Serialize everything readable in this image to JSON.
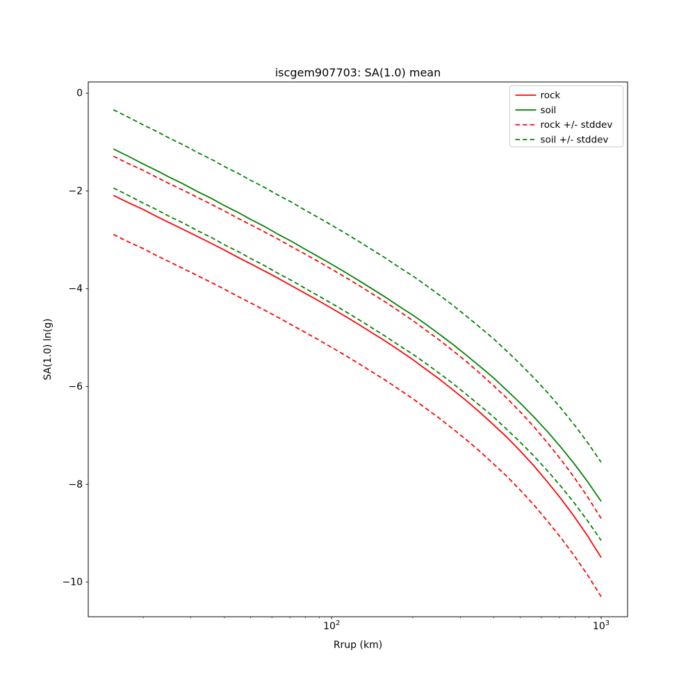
{
  "chart_data": {
    "type": "line",
    "title": "iscgem907703: SA(1.0) mean",
    "xlabel": "Rrup (km)",
    "ylabel": "SA(1.0) ln(g)",
    "x_scale": "log",
    "y_scale": "linear",
    "grid": false,
    "xlim": [
      12.5,
      1253
    ],
    "ylim": [
      -10.71,
      0.23
    ],
    "x_major_ticks": [
      {
        "value": 100,
        "base": "10",
        "exp": "2"
      },
      {
        "value": 1000,
        "base": "10",
        "exp": "3"
      }
    ],
    "x_minor_ticks": [
      20,
      30,
      40,
      50,
      60,
      70,
      80,
      90,
      200,
      300,
      400,
      500,
      600,
      700,
      800,
      900
    ],
    "y_ticks": [
      {
        "value": 0,
        "label": "0"
      },
      {
        "value": -2,
        "label": "−2"
      },
      {
        "value": -4,
        "label": "−4"
      },
      {
        "value": -6,
        "label": "−6"
      },
      {
        "value": -8,
        "label": "−8"
      },
      {
        "value": -10,
        "label": "−10"
      }
    ],
    "x": [
      15.5,
      17.6,
      20,
      22.4,
      25,
      28,
      32,
      36,
      40,
      45,
      50,
      56,
      63,
      71,
      79,
      89,
      100,
      112,
      126,
      141,
      158,
      178,
      200,
      224,
      251,
      282,
      316,
      355,
      398,
      447,
      501,
      562,
      631,
      708,
      794,
      891,
      1000
    ],
    "series": [
      {
        "name": "rock",
        "color": "#ff0000",
        "stddev": 0.8,
        "values": [
          -2.09,
          -2.24,
          -2.38,
          -2.52,
          -2.65,
          -2.78,
          -2.94,
          -3.08,
          -3.21,
          -3.36,
          -3.49,
          -3.63,
          -3.78,
          -3.94,
          -4.08,
          -4.24,
          -4.4,
          -4.56,
          -4.73,
          -4.9,
          -5.07,
          -5.26,
          -5.45,
          -5.65,
          -5.85,
          -6.07,
          -6.29,
          -6.53,
          -6.78,
          -7.04,
          -7.32,
          -7.62,
          -7.95,
          -8.29,
          -8.66,
          -9.06,
          -9.5
        ]
      },
      {
        "name": "soil",
        "color": "#008000",
        "stddev": 0.8,
        "values": [
          -1.14,
          -1.29,
          -1.45,
          -1.58,
          -1.72,
          -1.85,
          -2.02,
          -2.16,
          -2.3,
          -2.44,
          -2.58,
          -2.72,
          -2.88,
          -3.03,
          -3.18,
          -3.34,
          -3.5,
          -3.66,
          -3.83,
          -4.0,
          -4.17,
          -4.36,
          -4.54,
          -4.73,
          -4.93,
          -5.14,
          -5.36,
          -5.59,
          -5.82,
          -6.08,
          -6.34,
          -6.62,
          -6.92,
          -7.24,
          -7.58,
          -7.95,
          -8.35
        ]
      }
    ],
    "legend": {
      "position": "upper right",
      "entries": [
        {
          "label": "rock",
          "color": "#ff0000",
          "dash": "solid"
        },
        {
          "label": "soil",
          "color": "#008000",
          "dash": "solid"
        },
        {
          "label": "rock +/- stddev",
          "color": "#ff0000",
          "dash": "dashed"
        },
        {
          "label": "soil +/- stddev",
          "color": "#008000",
          "dash": "dashed"
        }
      ]
    }
  }
}
